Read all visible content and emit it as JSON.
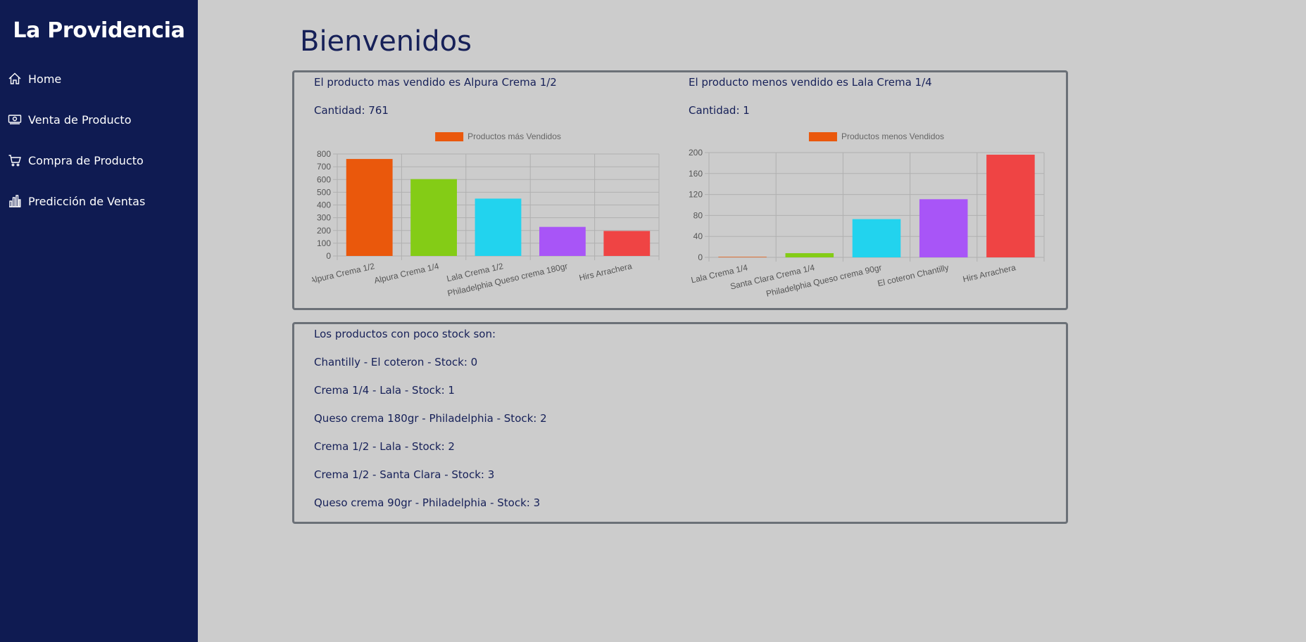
{
  "app": {
    "brand": "La Providencia"
  },
  "sidebar": {
    "items": [
      {
        "label": "Home",
        "icon": "home-icon"
      },
      {
        "label": "Venta de Producto",
        "icon": "money-icon"
      },
      {
        "label": "Compra de Producto",
        "icon": "cart-icon"
      },
      {
        "label": "Predicción de Ventas",
        "icon": "bar-chart-icon"
      }
    ]
  },
  "main": {
    "title": "Bienvenidos",
    "best": {
      "text": "El producto mas vendido es Alpura Crema 1/2",
      "qty": "Cantidad: 761"
    },
    "worst": {
      "text": "El producto menos vendido es Lala Crema 1/4",
      "qty": "Cantidad: 1"
    },
    "stock": {
      "heading": "Los productos con poco stock son:",
      "items": [
        "Chantilly - El coteron - Stock: 0",
        "Crema 1/4 - Lala - Stock: 1",
        "Queso crema 180gr - Philadelphia - Stock: 2",
        "Crema 1/2 - Lala - Stock: 2",
        "Crema 1/2 - Santa Clara - Stock: 3",
        "Queso crema 90gr - Philadelphia - Stock: 3"
      ]
    }
  },
  "colors": {
    "sidebar_bg": "#0f1b52",
    "page_bg": "#cccccc",
    "legend_swatch": "#ea580c",
    "bars": [
      "#ea580c",
      "#84cc16",
      "#22d3ee",
      "#a855f7",
      "#ef4444"
    ]
  },
  "chart_data": [
    {
      "type": "bar",
      "categories": [
        "Alpura Crema 1/2",
        "Alpura Crema 1/4",
        "Lala Crema 1/2",
        "Philadelphia Queso crema 180gr",
        "Hirs Arrachera"
      ],
      "series": [
        {
          "name": "Productos más Vendidos",
          "values": [
            761,
            603,
            450,
            228,
            196
          ]
        }
      ],
      "ylim": [
        0,
        800
      ],
      "yticks": [
        0,
        100,
        200,
        300,
        400,
        500,
        600,
        700,
        800
      ],
      "grid": true,
      "legend": "top-center"
    },
    {
      "type": "bar",
      "categories": [
        "Lala Crema 1/4",
        "Santa Clara Crema 1/4",
        "Philadelphia Queso crema 90gr",
        "El coteron Chantilly",
        "Hirs Arrachera"
      ],
      "series": [
        {
          "name": "Productos menos Vendidos",
          "values": [
            1,
            8,
            73,
            111,
            196
          ]
        }
      ],
      "ylim": [
        0,
        200
      ],
      "yticks": [
        0,
        40,
        80,
        120,
        160,
        200
      ],
      "grid": true,
      "legend": "top-center"
    }
  ]
}
